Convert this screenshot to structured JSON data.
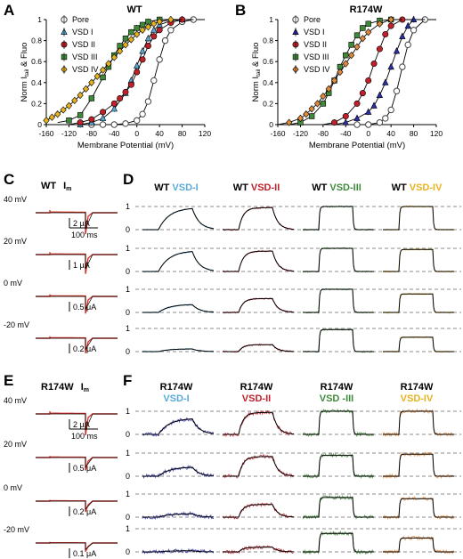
{
  "panels": {
    "A": "A",
    "B": "B",
    "C": "C",
    "D": "D",
    "E": "E",
    "F": "F"
  },
  "colors": {
    "pore": "#777777",
    "vsd1_wt": "#5aa9d6",
    "vsd2": "#c0202a",
    "vsd3": "#3f8a3a",
    "vsd4": "#e8b21e",
    "vsd1_mut": "#2b2fa8",
    "vsd4_mut": "#e08a3c",
    "fit": "#000000",
    "current": "#d9342b"
  },
  "chart_data": [
    {
      "id": "A",
      "type": "scatter",
      "title": "WT",
      "xlabel": "Membrane Potential (mV)",
      "ylabel": "Norm I_tail & Fluo",
      "ylabel_main": "Norm I",
      "ylabel_sub": "tail",
      "ylabel_rest": " & Fluo",
      "xlim": [
        -160,
        120
      ],
      "ylim": [
        0,
        1
      ],
      "xticks": [
        -160,
        -120,
        -80,
        -40,
        0,
        40,
        80,
        120
      ],
      "yticks": [
        0,
        0.2,
        0.4,
        0.6,
        0.8,
        1
      ],
      "legend_position": "top-left",
      "series": [
        {
          "name": "Pore",
          "key": "pore",
          "marker": "circle-open",
          "x": [
            -80,
            -60,
            -40,
            -20,
            0,
            10,
            20,
            30,
            40,
            50,
            60,
            80,
            100
          ],
          "y": [
            0,
            0,
            0,
            0.01,
            0.04,
            0.1,
            0.22,
            0.42,
            0.62,
            0.8,
            0.9,
            0.98,
            1
          ]
        },
        {
          "name": "VSD I",
          "key": "vsd1_wt",
          "marker": "triangle",
          "x": [
            -100,
            -80,
            -60,
            -40,
            -20,
            -10,
            0,
            10,
            20,
            30,
            40,
            60,
            80
          ],
          "y": [
            0,
            0.02,
            0.06,
            0.15,
            0.3,
            0.42,
            0.56,
            0.7,
            0.82,
            0.9,
            0.95,
            0.99,
            1
          ]
        },
        {
          "name": "VSD II",
          "key": "vsd2",
          "marker": "circle",
          "x": [
            -100,
            -80,
            -60,
            -40,
            -30,
            -20,
            -10,
            0,
            10,
            20,
            30,
            40,
            60,
            80
          ],
          "y": [
            0.02,
            0.05,
            0.12,
            0.2,
            0.25,
            0.31,
            0.38,
            0.5,
            0.62,
            0.75,
            0.84,
            0.9,
            0.97,
            1
          ]
        },
        {
          "name": "VSD III",
          "key": "vsd3",
          "marker": "square",
          "x": [
            -120,
            -100,
            -80,
            -60,
            -50,
            -40,
            -30,
            -20,
            -10,
            0,
            10,
            20,
            40
          ],
          "y": [
            0.04,
            0.09,
            0.25,
            0.45,
            0.55,
            0.66,
            0.75,
            0.82,
            0.88,
            0.92,
            0.95,
            0.98,
            1
          ]
        },
        {
          "name": "VSD IV",
          "key": "vsd4",
          "marker": "diamond",
          "x": [
            -160,
            -150,
            -140,
            -130,
            -120,
            -110,
            -100,
            -90,
            -80,
            -70,
            -60,
            -50,
            -40,
            -30,
            -20,
            -10,
            0,
            10,
            20,
            30,
            40,
            60
          ],
          "y": [
            0.04,
            0.07,
            0.1,
            0.14,
            0.18,
            0.23,
            0.28,
            0.34,
            0.4,
            0.46,
            0.52,
            0.58,
            0.64,
            0.7,
            0.76,
            0.81,
            0.86,
            0.9,
            0.93,
            0.96,
            0.98,
            1
          ]
        }
      ]
    },
    {
      "id": "B",
      "type": "scatter",
      "title": "R174W",
      "xlabel": "Membrane Potential (mV)",
      "ylabel": "Norm I_tail & Fluo",
      "ylabel_main": "Norm I",
      "ylabel_sub": "tail",
      "ylabel_rest": " & Fluo",
      "xlim": [
        -160,
        120
      ],
      "ylim": [
        0,
        1
      ],
      "xticks": [
        -160,
        -120,
        -80,
        -40,
        0,
        40,
        80,
        120
      ],
      "yticks": [
        0,
        0.2,
        0.4,
        0.6,
        0.8,
        1
      ],
      "legend_position": "top-left",
      "series": [
        {
          "name": "Pore",
          "key": "pore",
          "marker": "circle-open",
          "x": [
            -20,
            0,
            20,
            30,
            40,
            50,
            60,
            70,
            80,
            100
          ],
          "y": [
            0,
            0,
            0.02,
            0.06,
            0.14,
            0.32,
            0.55,
            0.76,
            0.9,
            1
          ]
        },
        {
          "name": "VSD I",
          "key": "vsd1_mut",
          "marker": "triangle",
          "x": [
            -40,
            -20,
            0,
            10,
            20,
            30,
            40,
            50,
            60,
            70,
            80
          ],
          "y": [
            0.02,
            0.06,
            0.12,
            0.18,
            0.28,
            0.4,
            0.55,
            0.7,
            0.84,
            0.94,
            1
          ]
        },
        {
          "name": "VSD II",
          "key": "vsd2",
          "marker": "circle",
          "x": [
            -60,
            -40,
            -20,
            -10,
            0,
            10,
            20,
            30,
            40,
            60
          ],
          "y": [
            0.02,
            0.08,
            0.2,
            0.3,
            0.42,
            0.58,
            0.72,
            0.86,
            0.94,
            1
          ]
        },
        {
          "name": "VSD III",
          "key": "vsd3",
          "marker": "square",
          "x": [
            -120,
            -100,
            -80,
            -70,
            -60,
            -50,
            -40,
            -30,
            -20,
            -10,
            0,
            20,
            40
          ],
          "y": [
            0.02,
            0.08,
            0.2,
            0.3,
            0.42,
            0.55,
            0.66,
            0.76,
            0.85,
            0.92,
            0.96,
            0.99,
            1
          ]
        },
        {
          "name": "VSD IV",
          "key": "vsd4_mut",
          "marker": "diamond",
          "x": [
            -140,
            -120,
            -110,
            -100,
            -90,
            -80,
            -70,
            -60,
            -50,
            -40,
            -30,
            -20,
            -10,
            0,
            20,
            40
          ],
          "y": [
            0.02,
            0.06,
            0.1,
            0.15,
            0.2,
            0.27,
            0.34,
            0.42,
            0.5,
            0.58,
            0.66,
            0.74,
            0.82,
            0.88,
            0.96,
            1
          ]
        }
      ]
    },
    {
      "id": "C",
      "type": "line",
      "title": "WT",
      "title_suffix": "I",
      "title_sub": "m",
      "rows": [
        {
          "voltage": "40 mV",
          "scale": "2 μA",
          "time": "100 ms",
          "amp": 1.0
        },
        {
          "voltage": "20 mV",
          "scale": "1 μA",
          "time": "",
          "amp": 0.9
        },
        {
          "voltage": "0 mV",
          "scale": "0.5 μA",
          "time": "",
          "amp": 0.8
        },
        {
          "voltage": "-20 mV",
          "scale": "0.2 μA",
          "time": "",
          "amp": 0.7
        }
      ]
    },
    {
      "id": "D",
      "type": "line",
      "ylim": [
        0,
        1
      ],
      "yticks": [
        0,
        1
      ],
      "columns": [
        {
          "prefix": "WT ",
          "name": "VSD-I",
          "key": "vsd1_wt",
          "shape": "slow"
        },
        {
          "prefix": "WT ",
          "name": "VSD-II",
          "key": "vsd2",
          "shape": "mid"
        },
        {
          "prefix": "WT ",
          "name": "VSD-III",
          "key": "vsd3",
          "shape": "fast"
        },
        {
          "prefix": "WT ",
          "name": "VSD-IV",
          "key": "vsd4",
          "shape": "fast"
        }
      ],
      "levels": [
        [
          0.95,
          0.95,
          1.0,
          1.0
        ],
        [
          0.9,
          0.88,
          1.0,
          0.95
        ],
        [
          0.35,
          0.6,
          1.0,
          0.8
        ],
        [
          0.12,
          0.3,
          0.95,
          0.62
        ]
      ]
    },
    {
      "id": "E",
      "type": "line",
      "title": "R174W",
      "title_suffix": "I",
      "title_sub": "m",
      "rows": [
        {
          "voltage": "40 mV",
          "scale": "2 μA",
          "time": "100 ms",
          "amp": 1.0
        },
        {
          "voltage": "20 mV",
          "scale": "0.5 μA",
          "time": "",
          "amp": 0.6
        },
        {
          "voltage": "0 mV",
          "scale": "0.2 μA",
          "time": "",
          "amp": 0.5
        },
        {
          "voltage": "-20 mV",
          "scale": "0.1 μA",
          "time": "",
          "amp": 0.4
        }
      ]
    },
    {
      "id": "F",
      "type": "line",
      "ylim": [
        0,
        1
      ],
      "yticks": [
        0,
        1
      ],
      "columns": [
        {
          "prefix": "R174W",
          "name": "VSD-I",
          "key": "vsd1_mut",
          "label_color": "vsd1_wt",
          "shape": "slow"
        },
        {
          "prefix": "R174W",
          "name": "VSD-II",
          "key": "vsd2",
          "label_color": "vsd2",
          "shape": "mid"
        },
        {
          "prefix": "R174W",
          "name": "VSD -III",
          "key": "vsd3",
          "label_color": "vsd3",
          "shape": "fast"
        },
        {
          "prefix": "R174W",
          "name": "VSD-IV",
          "key": "vsd4_mut",
          "label_color": "vsd4",
          "shape": "fast"
        }
      ],
      "levels": [
        [
          0.7,
          0.95,
          1.0,
          1.0
        ],
        [
          0.4,
          0.85,
          0.9,
          0.95
        ],
        [
          0.15,
          0.55,
          0.85,
          0.8
        ],
        [
          0.05,
          0.2,
          0.8,
          0.6
        ]
      ]
    }
  ]
}
